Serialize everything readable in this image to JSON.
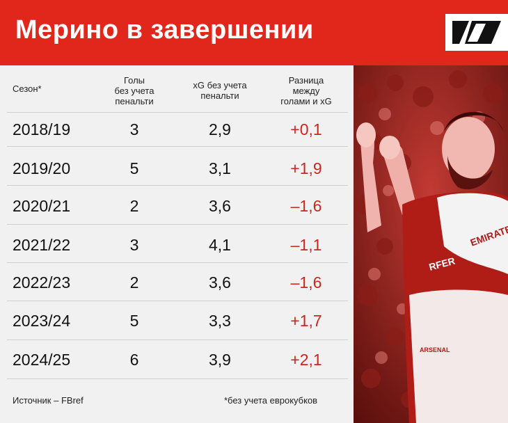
{
  "header": {
    "title": "Мерино в завершении",
    "colors": {
      "brand_red": "#e1261c",
      "diff_red": "#c8281f"
    },
    "logo_icon": "stylized-N-logo-icon"
  },
  "table": {
    "columns": {
      "season": "Сезон*",
      "goals": [
        "Голы",
        "без учета",
        "пенальти"
      ],
      "xg": [
        "xG без учета",
        "пенальти"
      ],
      "diff": [
        "Разница",
        "между",
        "голами и xG"
      ]
    },
    "rows": [
      {
        "season": "2018/19",
        "goals": "3",
        "xg": "2,9",
        "diff": "+0,1"
      },
      {
        "season": "2019/20",
        "goals": "5",
        "xg": "3,1",
        "diff": "+1,9"
      },
      {
        "season": "2020/21",
        "goals": "2",
        "xg": "3,6",
        "diff": "–1,6"
      },
      {
        "season": "2021/22",
        "goals": "3",
        "xg": "4,1",
        "diff": "–1,1"
      },
      {
        "season": "2022/23",
        "goals": "2",
        "xg": "3,6",
        "diff": "–1,6"
      },
      {
        "season": "2023/24",
        "goals": "5",
        "xg": "3,3",
        "diff": "+1,7"
      },
      {
        "season": "2024/25",
        "goals": "6",
        "xg": "3,9",
        "diff": "+2,1"
      }
    ]
  },
  "footer": {
    "source": "Источник – FBref",
    "note": "*без учета еврокубков"
  },
  "photo": {
    "description_icon": "celebrating-player-photo"
  }
}
